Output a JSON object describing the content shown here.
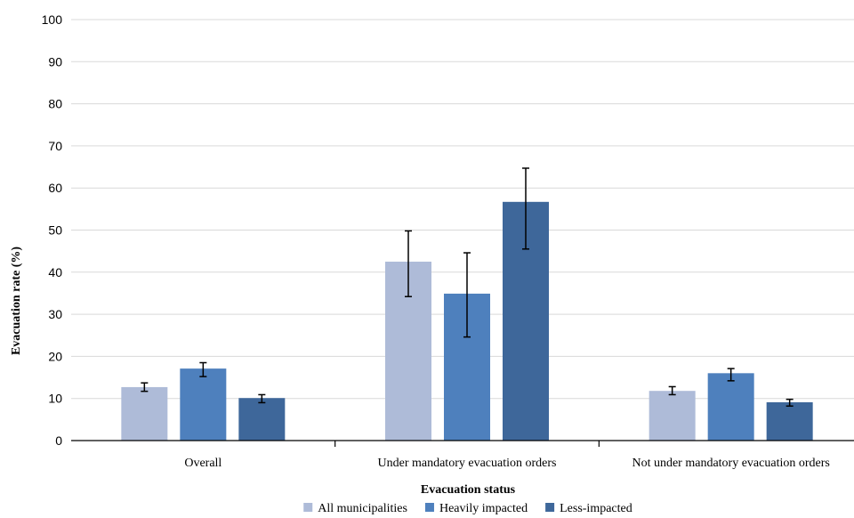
{
  "chart_data": {
    "type": "bar",
    "xlabel": "Evacuation status",
    "ylabel": "Evacuation rate (%)",
    "ylim": [
      0,
      100
    ],
    "yticks": [
      0,
      10,
      20,
      30,
      40,
      50,
      60,
      70,
      80,
      90,
      100
    ],
    "grid": true,
    "legend_position": "bottom",
    "categories": [
      "Overall",
      "Under mandatory evacuation orders",
      "Not under mandatory evacuation orders"
    ],
    "series": [
      {
        "name": "All municipalities",
        "color": "#aebbd8",
        "values": [
          12.7,
          42.5,
          11.8
        ],
        "error_low": [
          11.7,
          34.2,
          10.9
        ],
        "error_high": [
          13.7,
          49.8,
          12.8
        ]
      },
      {
        "name": "Heavily impacted",
        "color": "#4e80bd",
        "values": [
          17.1,
          34.9,
          16.0
        ],
        "error_low": [
          15.2,
          24.6,
          14.2
        ],
        "error_high": [
          18.5,
          44.6,
          17.1
        ]
      },
      {
        "name": "Less-impacted",
        "color": "#3e679a",
        "values": [
          10.1,
          56.7,
          9.1
        ],
        "error_low": [
          9.0,
          45.5,
          8.2
        ],
        "error_high": [
          10.9,
          64.7,
          9.8
        ]
      }
    ]
  }
}
